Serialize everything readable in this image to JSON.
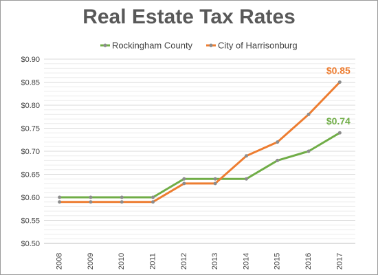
{
  "chart_data": {
    "type": "line",
    "title": "Real Estate Tax Rates",
    "xlabel": "",
    "ylabel": "",
    "categories": [
      "2008",
      "2009",
      "2010",
      "2011",
      "2012",
      "2013",
      "2014",
      "2015",
      "2016",
      "2017"
    ],
    "ylim": [
      0.5,
      0.9
    ],
    "y_ticks": [
      "$0.50",
      "$0.55",
      "$0.60",
      "$0.65",
      "$0.70",
      "$0.75",
      "$0.80",
      "$0.85",
      "$0.90"
    ],
    "grid": true,
    "legend_position": "top",
    "series": [
      {
        "name": "Rockingham County",
        "color": "#70AD47",
        "values": [
          0.6,
          0.6,
          0.6,
          0.6,
          0.64,
          0.64,
          0.64,
          0.68,
          0.7,
          0.74
        ],
        "end_label": "$0.74"
      },
      {
        "name": "City of Harrisonburg",
        "color": "#ED7D31",
        "values": [
          0.59,
          0.59,
          0.59,
          0.59,
          0.63,
          0.63,
          0.69,
          0.72,
          0.78,
          0.85
        ],
        "end_label": "$0.85"
      }
    ],
    "marker_color": "#8C8C8C"
  }
}
